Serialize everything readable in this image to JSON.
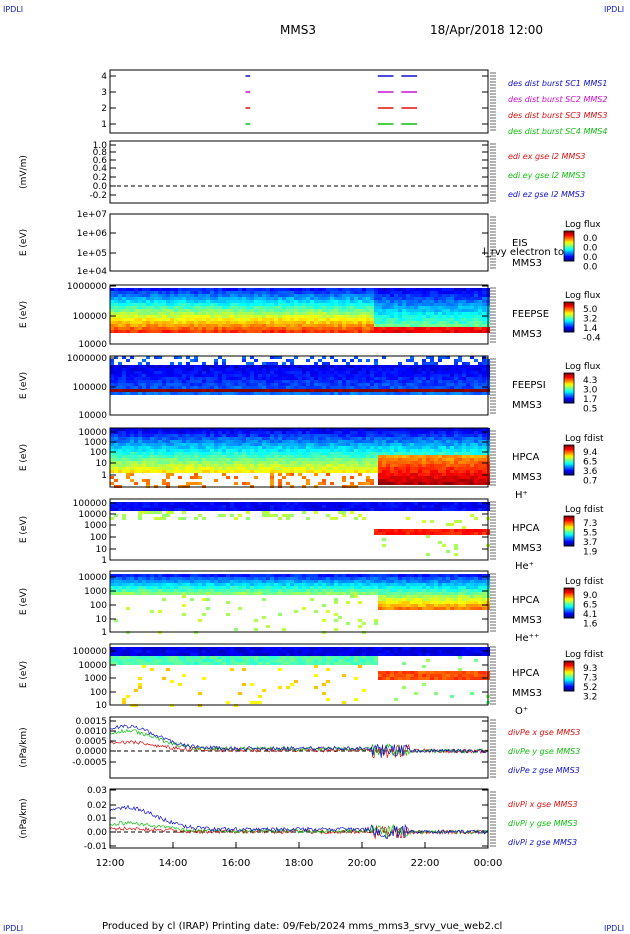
{
  "header": {
    "corner_label": "IPDLI",
    "spacecraft": "MMS3",
    "datetime": "18/Apr/2018 12:00"
  },
  "footer": {
    "text": "Produced by cl (IRAP)   Printing date: 09/Feb/2024   mms_mms3_srvy_vue_web2.cl"
  },
  "colors": {
    "red": "#e01010",
    "green": "#10c010",
    "blue": "#1010d0",
    "magenta": "#d010d0"
  },
  "time_axis": {
    "ticks": [
      "12:00",
      "14:00",
      "16:00",
      "18:00",
      "20:00",
      "22:00",
      "00:00"
    ]
  },
  "chart_data": [
    {
      "type": "line",
      "name": "burst",
      "ytick_labels": [
        "4",
        "3",
        "2",
        "1"
      ],
      "series": [
        {
          "name": "des dist burst SC1 MMS1",
          "y": 4,
          "color": "blue",
          "segments": [
            [
              16.3,
              16.45
            ],
            [
              20.5,
              21.0
            ],
            [
              21.25,
              21.75
            ]
          ]
        },
        {
          "name": "des dist burst SC2 MMS2",
          "y": 3,
          "color": "magenta",
          "segments": [
            [
              16.3,
              16.45
            ],
            [
              20.5,
              21.0
            ],
            [
              21.25,
              21.75
            ]
          ]
        },
        {
          "name": "des dist burst SC3 MMS3",
          "y": 2,
          "color": "red",
          "segments": [
            [
              16.3,
              16.45
            ],
            [
              20.5,
              21.0
            ],
            [
              21.25,
              21.75
            ]
          ]
        },
        {
          "name": "des dist burst SC4 MMS4",
          "y": 1,
          "color": "green",
          "segments": [
            [
              16.3,
              16.45
            ],
            [
              20.5,
              21.0
            ],
            [
              21.25,
              21.75
            ]
          ]
        }
      ]
    },
    {
      "type": "line",
      "name": "edi",
      "ylabel": "(mV/m)",
      "ytick_labels": [
        "1.0",
        "0.8",
        "0.6",
        "0.4",
        "0.2",
        "0.0",
        "-0.2"
      ],
      "series": [
        {
          "name": "edi ex gse l2 MMS3",
          "color": "red"
        },
        {
          "name": "edi ey gse l2 MMS3",
          "color": "green"
        },
        {
          "name": "edi ez gse l2 MMS3",
          "color": "blue"
        }
      ]
    },
    {
      "type": "heatmap",
      "name": "eis",
      "ylabel": "E (eV)",
      "ytick_labels": [
        "1e+07",
        "1e+06",
        "1e+05",
        "1e+04"
      ],
      "label_lines": [
        "EIS",
        "MMS3"
      ],
      "overlay_text": "l_rvy electron to",
      "colorbar": {
        "title": "Log flux",
        "ticks": [
          "0.0",
          "0.0",
          "0.0",
          "0.0"
        ]
      }
    },
    {
      "type": "heatmap",
      "name": "feepse",
      "ylabel": "E (eV)",
      "ytick_labels": [
        "1000000",
        "100000",
        "10000"
      ],
      "label_lines": [
        "FEEPSE",
        "MMS3"
      ],
      "colorbar": {
        "title": "Log flux",
        "ticks": [
          "5.0",
          "3.2",
          "1.4",
          "-0.4"
        ]
      }
    },
    {
      "type": "heatmap",
      "name": "feepsi",
      "ylabel": "E (eV)",
      "ytick_labels": [
        "1000000",
        "100000",
        "10000"
      ],
      "label_lines": [
        "FEEPSI",
        "MMS3"
      ],
      "colorbar": {
        "title": "Log flux",
        "ticks": [
          "4.3",
          "3.0",
          "1.7",
          "0.5"
        ]
      }
    },
    {
      "type": "heatmap",
      "name": "hpca_h",
      "ylabel": "E (eV)",
      "ytick_labels": [
        "10000",
        "1000",
        "100",
        "10",
        "1"
      ],
      "label_lines": [
        "HPCA",
        "MMS3",
        "H⁺"
      ],
      "colorbar": {
        "title": "Log fdist",
        "ticks": [
          "9.4",
          "6.5",
          "3.6",
          "0.7"
        ]
      }
    },
    {
      "type": "heatmap",
      "name": "hpca_he",
      "ylabel": "E (eV)",
      "ytick_labels": [
        "100000",
        "10000",
        "1000",
        "100",
        "10",
        "1"
      ],
      "label_lines": [
        "HPCA",
        "MMS3",
        "He⁺"
      ],
      "colorbar": {
        "title": "Log fdist",
        "ticks": [
          "7.3",
          "5.5",
          "3.7",
          "1.9"
        ]
      }
    },
    {
      "type": "heatmap",
      "name": "hpca_hepp",
      "ylabel": "E (eV)",
      "ytick_labels": [
        "10000",
        "1000",
        "100",
        "10",
        "1"
      ],
      "label_lines": [
        "HPCA",
        "MMS3",
        "He⁺⁺"
      ],
      "colorbar": {
        "title": "Log fdist",
        "ticks": [
          "9.0",
          "6.5",
          "4.1",
          "1.6"
        ]
      }
    },
    {
      "type": "heatmap",
      "name": "hpca_o",
      "ylabel": "E (eV)",
      "ytick_labels": [
        "100000",
        "10000",
        "1000",
        "100",
        "10"
      ],
      "label_lines": [
        "HPCA",
        "MMS3",
        "O⁺"
      ],
      "colorbar": {
        "title": "Log fdist",
        "ticks": [
          "9.3",
          "7.3",
          "5.2",
          "3.2"
        ]
      }
    },
    {
      "type": "line",
      "name": "divpe",
      "ylabel": "(nPa/km)",
      "ytick_labels": [
        "0.0015",
        "0.0010",
        "0.0005",
        "0.0000",
        "-0.0005"
      ],
      "series": [
        {
          "name": "divPe x gse MMS3",
          "color": "red"
        },
        {
          "name": "divPe y gse MMS3",
          "color": "green"
        },
        {
          "name": "divPe z gse MMS3",
          "color": "blue"
        }
      ]
    },
    {
      "type": "line",
      "name": "divpi",
      "ylabel": "(nPa/km)",
      "ytick_labels": [
        "0.03",
        "0.02",
        "0.01",
        "0.00",
        "-0.01"
      ],
      "series": [
        {
          "name": "divPi x gse MMS3",
          "color": "red"
        },
        {
          "name": "divPi y gse MMS3",
          "color": "green"
        },
        {
          "name": "divPi z gse MMS3",
          "color": "blue"
        }
      ]
    }
  ]
}
